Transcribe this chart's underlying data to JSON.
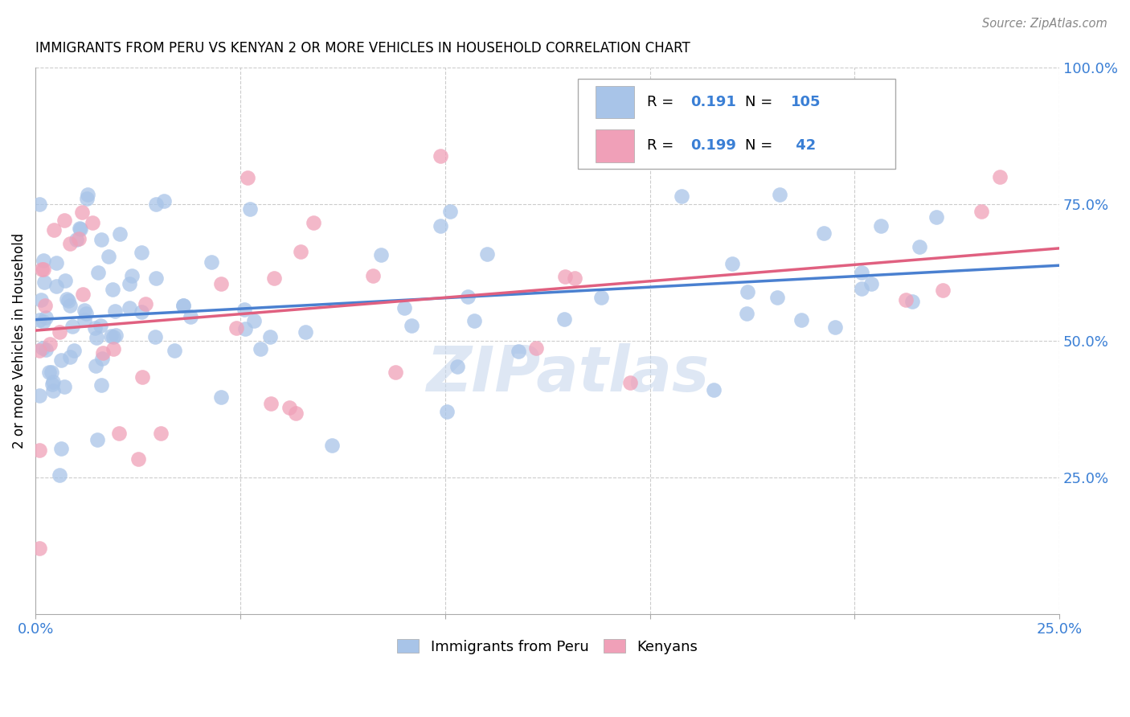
{
  "title": "IMMIGRANTS FROM PERU VS KENYAN 2 OR MORE VEHICLES IN HOUSEHOLD CORRELATION CHART",
  "source": "Source: ZipAtlas.com",
  "ylabel": "2 or more Vehicles in Household",
  "x_min": 0.0,
  "x_max": 0.25,
  "y_min": 0.0,
  "y_max": 1.0,
  "legend_label1": "Immigrants from Peru",
  "legend_label2": "Kenyans",
  "R1": 0.191,
  "N1": 105,
  "R2": 0.199,
  "N2": 42,
  "color_peru": "#a8c4e8",
  "color_kenya": "#f0a0b8",
  "color_text_blue": "#3a7fd5",
  "regression_color_peru": "#4a80d0",
  "regression_color_kenya": "#e06080",
  "watermark": "ZIPatlas",
  "title_fontsize": 12,
  "tick_fontsize": 13
}
